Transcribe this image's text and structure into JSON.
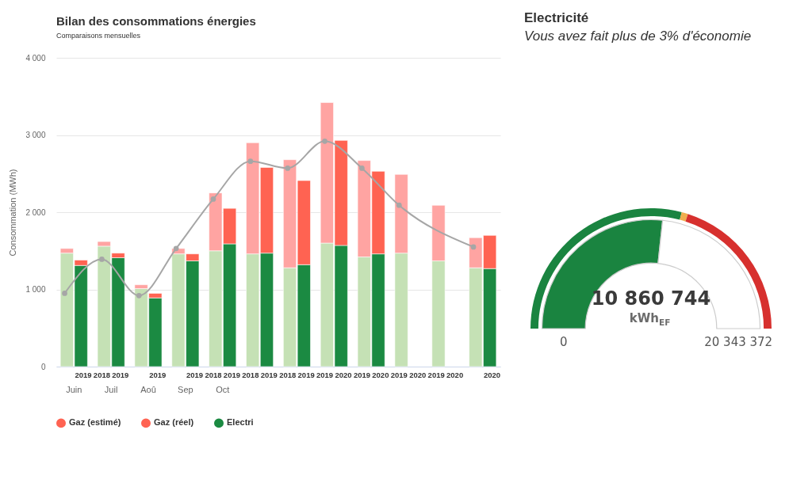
{
  "chart_data": [
    {
      "type": "bar",
      "title": "Bilan des consommations énergies",
      "subtitle": "Comparaisons mensuelles",
      "ylabel": "Consommation (MWh)",
      "categories": [
        null,
        "2019",
        "2018",
        "2019",
        null,
        "2019",
        null,
        "2019",
        "2018",
        "2019",
        "2018",
        "2019",
        "2018",
        "2019",
        "2019",
        "2020",
        "2019",
        "2020",
        "2019",
        "2020",
        "2019",
        "2020",
        null,
        "2020"
      ],
      "stacked": true,
      "series": [
        {
          "colors": [
            "#c5e1b5",
            "#1b8a42",
            "#c5e1b5",
            "#1b8a42",
            "#c5e1b5",
            "#1b8a42",
            "#c5e1b5",
            "#1b8a42",
            "#c5e1b5",
            "#1b8a42",
            "#c5e1b5",
            "#1b8a42",
            "#c5e1b5",
            "#1b8a42",
            "#c5e1b5",
            "#1b8a42",
            "#c5e1b5",
            "#1b8a42",
            "#c5e1b5",
            "#1b8a42",
            "#c5e1b5",
            "#1b8a42",
            "#c5e1b5",
            "#1b8a42"
          ],
          "values": [
            1470,
            1310,
            1560,
            1410,
            1010,
            890,
            1460,
            1370,
            1500,
            1590,
            1460,
            1470,
            1280,
            1320,
            1600,
            1570,
            1420,
            1460,
            1470,
            null,
            1370,
            null,
            1280,
            null
          ]
        },
        {
          "name": "Electri",
          "color": "#1b8a42",
          "values": [
            null,
            null,
            null,
            null,
            null,
            null,
            null,
            null,
            null,
            null,
            null,
            null,
            null,
            null,
            null,
            null,
            null,
            null,
            null,
            null,
            null,
            null,
            null,
            1270
          ]
        },
        {
          "name": "Gaz (réel)",
          "color": "#ff6352",
          "colors": [
            "#ffa4a2",
            "#ff6352",
            "#ffa4a2",
            "#ff6352",
            "#ffa4a2",
            "#ff6352",
            "#ffa4a2",
            "#ff6352",
            "#ffa4a2",
            "#ff6352",
            "#ffa4a2",
            "#ff6352",
            "#ffa4a2",
            "#ff6352",
            "#ffa4a2",
            "#ff6352",
            "#ffa4a2",
            "#ff6352",
            "#ffa4a2",
            "#ff6352",
            "#ffa4a2",
            "#ff6352",
            "#ffa4a2",
            "#ff6352"
          ],
          "values": [
            60,
            70,
            60,
            60,
            50,
            60,
            70,
            90,
            750,
            460,
            1440,
            1110,
            1400,
            1090,
            1820,
            1360,
            1250,
            1070,
            1020,
            null,
            720,
            null,
            390,
            null
          ]
        },
        {
          "name": "Gaz (estimé)",
          "color": "#ff6352",
          "values": [
            null,
            null,
            null,
            null,
            null,
            null,
            null,
            null,
            null,
            null,
            null,
            null,
            null,
            null,
            null,
            null,
            null,
            null,
            null,
            null,
            null,
            null,
            null,
            430
          ]
        },
        {
          "type": "line",
          "color": "#a6a6a6",
          "values": [
            950,
            null,
            1390,
            null,
            920,
            null,
            1530,
            null,
            2170,
            null,
            2660,
            null,
            2570,
            null,
            2920,
            null,
            2570,
            null,
            2090,
            null,
            null,
            null,
            1550,
            null
          ]
        }
      ],
      "annotations": [
        "Juin",
        "Juil",
        "Aoû",
        "Sep",
        "Oct"
      ],
      "marker": "circle",
      "ylim": [
        0,
        4000
      ],
      "yticks": [
        0,
        {
          "value": 1000,
          "label": "1 000"
        },
        {
          "value": 2000,
          "label": "2 000"
        },
        {
          "value": 3000,
          "label": "3 000"
        },
        {
          "value": 4000,
          "label": "4 000"
        }
      ],
      "grid": "y",
      "legend": "bottom"
    },
    {
      "type": "donut",
      "title": "Electricité",
      "subtitle": "Vous avez fait plus de 3% d'économie",
      "series": [
        {
          "values": [
            53.4,
            46.6
          ],
          "colors": [
            "#1a8440",
            "#ffffff"
          ]
        },
        {
          "values": [
            58.2,
            1.7,
            40.1
          ],
          "colors": [
            "#1a8440",
            "#f0ad4e",
            "#d7302e"
          ]
        }
      ],
      "annotations": [
        "10 860 744",
        "kWh$_{EF}$",
        "0",
        "20 343 372"
      ]
    }
  ]
}
